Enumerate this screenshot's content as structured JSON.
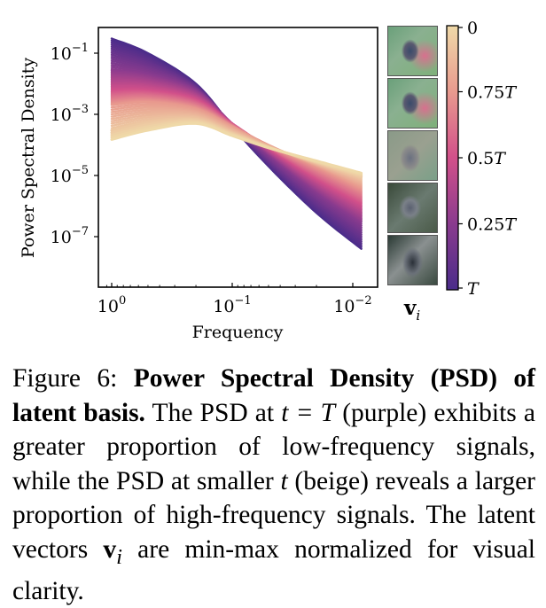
{
  "chart_data": {
    "type": "line",
    "xlabel": "Frequency",
    "ylabel": "Power Spectral Density",
    "xscale": "log",
    "yscale": "log",
    "x_axis_reversed": true,
    "xlim": [
      1.15,
      0.0085
    ],
    "ylim": [
      3e-09,
      1.5
    ],
    "x_ticks": [
      {
        "value": 1,
        "label_base": "10",
        "label_exp": "0"
      },
      {
        "value": 0.1,
        "label_base": "10",
        "label_exp": "−1"
      },
      {
        "value": 0.01,
        "label_base": "10",
        "label_exp": "−2"
      }
    ],
    "y_ticks": [
      {
        "value": 0.1,
        "label_base": "10",
        "label_exp": "−1"
      },
      {
        "value": 0.001,
        "label_base": "10",
        "label_exp": "−3"
      },
      {
        "value": 1e-05,
        "label_base": "10",
        "label_exp": "−5"
      },
      {
        "value": 1e-07,
        "label_base": "10",
        "label_exp": "−7"
      }
    ],
    "series_description": "Family of PSD curves for timesteps t from T (purple) to 0 (beige)",
    "series": [
      {
        "name": "t=T",
        "t_fraction": 1.0,
        "x": [
          1.0,
          0.5,
          0.2,
          0.1,
          0.05,
          0.02,
          0.0085
        ],
        "y": [
          0.3,
          0.1,
          0.01,
          0.0004,
          2e-05,
          6e-07,
          4e-08
        ]
      },
      {
        "name": "t=0.75T",
        "t_fraction": 0.75,
        "x": [
          1.0,
          0.5,
          0.2,
          0.1,
          0.05,
          0.02,
          0.0085
        ],
        "y": [
          0.03,
          0.02,
          0.006,
          0.0005,
          5e-05,
          3e-06,
          3e-07
        ]
      },
      {
        "name": "t=0.5T",
        "t_fraction": 0.5,
        "x": [
          1.0,
          0.5,
          0.2,
          0.1,
          0.05,
          0.02,
          0.0085
        ],
        "y": [
          0.006,
          0.006,
          0.003,
          0.0005,
          8e-05,
          8e-06,
          1.2e-06
        ]
      },
      {
        "name": "t=0.25T",
        "t_fraction": 0.25,
        "x": [
          1.0,
          0.5,
          0.2,
          0.1,
          0.05,
          0.02,
          0.0085
        ],
        "y": [
          0.002,
          0.0025,
          0.0015,
          0.0004,
          0.0001,
          2e-05,
          4e-06
        ]
      },
      {
        "name": "t=0",
        "t_fraction": 0.0,
        "x": [
          1.0,
          0.5,
          0.2,
          0.1,
          0.05,
          0.02,
          0.0085
        ],
        "y": [
          0.00015,
          0.0003,
          0.0005,
          0.0002,
          8e-05,
          3e-05,
          1.2e-05
        ]
      }
    ],
    "colorbar": {
      "colormap": "magma-like (purple to beige)",
      "colors": [
        "#4a2c8a",
        "#8a3b8e",
        "#d2508a",
        "#e89a8e",
        "#efd9a8"
      ],
      "ticks": [
        {
          "label": "0",
          "italic_part": ""
        },
        {
          "label": "0.75",
          "italic_part": "T"
        },
        {
          "label": "0.5",
          "italic_part": "T"
        },
        {
          "label": "0.25",
          "italic_part": "T"
        },
        {
          "label": "",
          "italic_part": "T"
        }
      ]
    },
    "thumbnails_label": {
      "bold": "v",
      "subscript": "i"
    },
    "thumbnails": [
      "latent vector t=0",
      "latent vector t=0.25T",
      "latent vector t=0.5T",
      "latent vector t=0.75T",
      "latent vector t=T"
    ]
  },
  "caption": {
    "label": "Figure 6:",
    "title": "Power Spectral Density (PSD) of latent basis.",
    "text_1": " The PSD at ",
    "math_1": "t = T",
    "text_2": " (purple) exhibits a greater proportion of low-frequency signals, while the PSD at smaller ",
    "math_2": "t",
    "text_3": " (beige) reveals a larger proportion of high-frequency signals. The latent vectors ",
    "math_3_bold": "v",
    "math_3_sub": "i",
    "text_4": " are min-max normalized for visual clarity."
  }
}
